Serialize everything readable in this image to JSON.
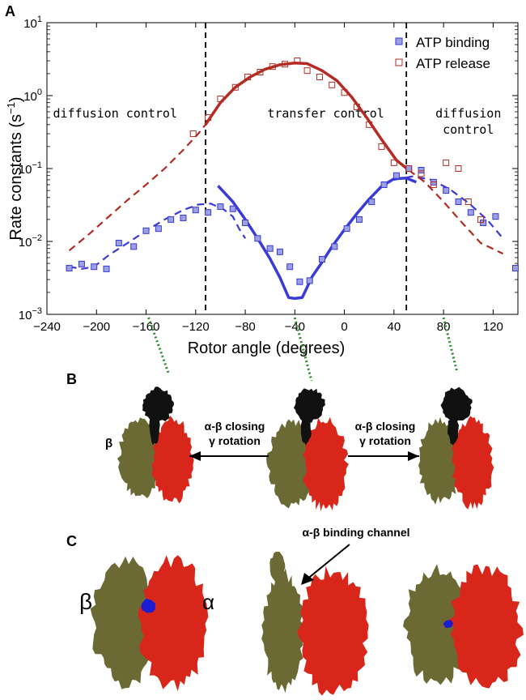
{
  "panels": {
    "a": "A",
    "b": "B",
    "c": "C"
  },
  "chart_data": {
    "type": "scatter",
    "title": "",
    "xlabel": "Rotor angle (degrees)",
    "ylabel": "Rate constants (s",
    "ylabel_superscript": "−1",
    "ylabel_close": ")",
    "yscale": "log",
    "xlim": [
      -240,
      140
    ],
    "ylim": [
      0.001,
      10
    ],
    "xticks": [
      -240,
      -200,
      -160,
      -120,
      -80,
      -40,
      0,
      40,
      80,
      120
    ],
    "xtick_labels": [
      "−240",
      "−200",
      "−160",
      "−120",
      "−80",
      "−40",
      "0",
      "40",
      "80",
      "120"
    ],
    "ytick_exponents": [
      -3,
      -2,
      -1,
      0,
      1
    ],
    "ytick_base": "10",
    "vlines": [
      -112,
      50
    ],
    "legend_position": "top-right",
    "region_labels": [
      {
        "lines": [
          "diffusion control"
        ],
        "x": -185,
        "y": 0.5
      },
      {
        "lines": [
          "transfer control"
        ],
        "x": -15,
        "y": 0.5
      },
      {
        "lines": [
          "diffusion",
          "control"
        ],
        "x": 100,
        "y": 0.5
      }
    ],
    "series": [
      {
        "name": "ATP binding",
        "marker": "filled-square",
        "color": "#3a3ad8",
        "fill": "#9aa0e0",
        "points": [
          [
            -222,
            0.0043
          ],
          [
            -212,
            0.0049
          ],
          [
            -202,
            0.0045
          ],
          [
            -192,
            0.0042
          ],
          [
            -182,
            0.0095
          ],
          [
            -170,
            0.0085
          ],
          [
            -160,
            0.014
          ],
          [
            -150,
            0.015
          ],
          [
            -140,
            0.02
          ],
          [
            -130,
            0.021
          ],
          [
            -120,
            0.027
          ],
          [
            -110,
            0.025
          ],
          [
            -100,
            0.03
          ],
          [
            -90,
            0.028
          ],
          [
            -80,
            0.018
          ],
          [
            -70,
            0.011
          ],
          [
            -60,
            0.008
          ],
          [
            -52,
            0.0072
          ],
          [
            -44,
            0.0045
          ],
          [
            -36,
            0.0028
          ],
          [
            -28,
            0.0029
          ],
          [
            -18,
            0.0057
          ],
          [
            -8,
            0.0085
          ],
          [
            2,
            0.015
          ],
          [
            12,
            0.02
          ],
          [
            22,
            0.035
          ],
          [
            32,
            0.06
          ],
          [
            42,
            0.08
          ],
          [
            52,
            0.1
          ],
          [
            62,
            0.095
          ],
          [
            72,
            0.065
          ],
          [
            82,
            0.05
          ],
          [
            92,
            0.035
          ],
          [
            102,
            0.025
          ],
          [
            112,
            0.018
          ],
          [
            122,
            0.022
          ],
          [
            138,
            0.0043
          ]
        ],
        "fit_solid": [
          [
            -102,
            0.058
          ],
          [
            -90,
            0.035
          ],
          [
            -80,
            0.02
          ],
          [
            -70,
            0.011
          ],
          [
            -60,
            0.0058
          ],
          [
            -52,
            0.0032
          ],
          [
            -45,
            0.0017
          ],
          [
            -40,
            0.00165
          ],
          [
            -34,
            0.0017
          ],
          [
            -26,
            0.0033
          ],
          [
            -18,
            0.0052
          ],
          [
            -10,
            0.0085
          ],
          [
            0,
            0.0145
          ],
          [
            10,
            0.024
          ],
          [
            20,
            0.038
          ],
          [
            30,
            0.057
          ],
          [
            40,
            0.072
          ],
          [
            50,
            0.074
          ],
          [
            58,
            0.065
          ]
        ],
        "fit_dashed": [
          [
            -222,
            0.0045
          ],
          [
            -212,
            0.0042
          ],
          [
            -202,
            0.0045
          ],
          [
            -190,
            0.0065
          ],
          [
            -175,
            0.0095
          ],
          [
            -160,
            0.014
          ],
          [
            -145,
            0.02
          ],
          [
            -130,
            0.027
          ],
          [
            -118,
            0.032
          ],
          [
            -108,
            0.033
          ],
          [
            -98,
            0.028
          ],
          [
            -90,
            0.022
          ],
          [
            -85,
            0.015
          ],
          [
            -80,
            0.011
          ],
          [
            40,
            0.07
          ],
          [
            55,
            0.078
          ],
          [
            70,
            0.07
          ],
          [
            85,
            0.052
          ],
          [
            100,
            0.034
          ],
          [
            115,
            0.02
          ],
          [
            128,
            0.011
          ]
        ]
      },
      {
        "name": "ATP release",
        "marker": "open-square",
        "color": "#b32b22",
        "fill": "none",
        "points": [
          [
            -122,
            0.3
          ],
          [
            -110,
            0.5
          ],
          [
            -100,
            0.9
          ],
          [
            -88,
            1.3
          ],
          [
            -78,
            1.8
          ],
          [
            -68,
            2.1
          ],
          [
            -58,
            2.5
          ],
          [
            -48,
            2.7
          ],
          [
            -38,
            3.0
          ],
          [
            -30,
            2.2
          ],
          [
            -20,
            1.8
          ],
          [
            -10,
            1.4
          ],
          [
            0,
            1.1
          ],
          [
            10,
            0.7
          ],
          [
            20,
            0.4
          ],
          [
            30,
            0.2
          ],
          [
            40,
            0.12
          ],
          [
            52,
            0.1
          ],
          [
            62,
            0.085
          ],
          [
            72,
            0.06
          ],
          [
            82,
            0.12
          ],
          [
            92,
            0.1
          ],
          [
            100,
            0.035
          ],
          [
            110,
            0.02
          ]
        ],
        "fit_solid": [
          [
            -112,
            0.4
          ],
          [
            -100,
            0.8
          ],
          [
            -88,
            1.3
          ],
          [
            -76,
            1.8
          ],
          [
            -64,
            2.3
          ],
          [
            -52,
            2.65
          ],
          [
            -40,
            2.8
          ],
          [
            -30,
            2.75
          ],
          [
            -18,
            2.2
          ],
          [
            -6,
            1.6
          ],
          [
            6,
            0.95
          ],
          [
            18,
            0.5
          ],
          [
            30,
            0.25
          ],
          [
            42,
            0.13
          ],
          [
            52,
            0.095
          ]
        ],
        "fit_dashed": [
          [
            -222,
            0.0075
          ],
          [
            -205,
            0.013
          ],
          [
            -190,
            0.022
          ],
          [
            -175,
            0.037
          ],
          [
            -160,
            0.06
          ],
          [
            -145,
            0.1
          ],
          [
            -130,
            0.18
          ],
          [
            -118,
            0.3
          ],
          [
            -112,
            0.4
          ],
          [
            52,
            0.095
          ],
          [
            65,
            0.065
          ],
          [
            80,
            0.035
          ],
          [
            95,
            0.018
          ],
          [
            110,
            0.0095
          ],
          [
            128,
            0.0068
          ]
        ]
      }
    ]
  },
  "panel_b": {
    "beta_label": "β",
    "arrow_left": [
      "α-β closing",
      "γ rotation"
    ],
    "arrow_right": [
      "α-β closing",
      "γ rotation"
    ]
  },
  "panel_c": {
    "beta_label": "β",
    "alpha_label": "α",
    "channel_label": "α-β binding channel"
  },
  "colors": {
    "beta_olive": "#6b6a35",
    "alpha_red": "#d8261a",
    "gamma_black": "#111111",
    "ligand_blue": "#1c1cd0",
    "connector_green": "#2a8a2a"
  }
}
